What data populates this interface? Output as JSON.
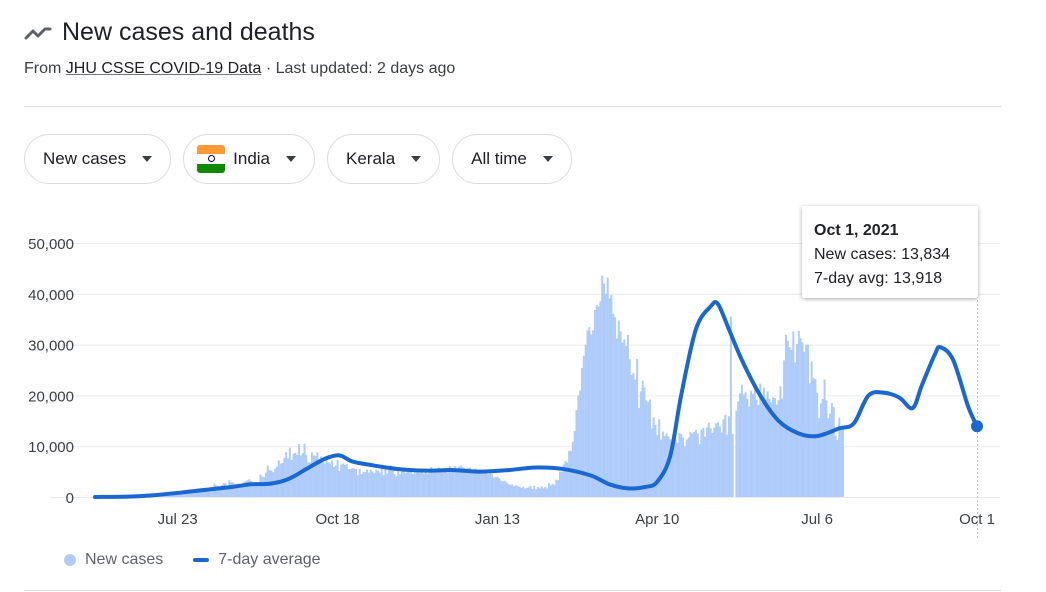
{
  "header": {
    "title": "New cases and deaths",
    "source_prefix": "From",
    "source_link": "JHU CSSE COVID-19 Data",
    "source_suffix": "· Last updated: 2 days ago"
  },
  "filters": {
    "metric": "New cases",
    "country": "India",
    "region": "Kerala",
    "range": "All time"
  },
  "tooltip": {
    "date": "Oct 1, 2021",
    "new_cases": "New cases: 13,834",
    "avg": "7-day avg: 13,918"
  },
  "legend": {
    "new_cases": "New cases",
    "avg": "7-day average"
  },
  "colors": {
    "bar": "#aecbfa",
    "avg_line": "#1967d2",
    "grid": "#e8eaed"
  },
  "chart_data": {
    "type": "bar",
    "x_ticks": [
      "Jul 23",
      "Oct 18",
      "Jan 13",
      "Apr 10",
      "Jul 6",
      "Oct 1"
    ],
    "x_tick_days": [
      120,
      207,
      294,
      381,
      468,
      555
    ],
    "x_range_days": [
      75,
      555
    ],
    "y_ticks": [
      "0",
      "10,000",
      "20,000",
      "30,000",
      "40,000",
      "50,000"
    ],
    "y_tick_values": [
      0,
      10000,
      20000,
      30000,
      40000,
      50000
    ],
    "ylim": [
      0,
      50000
    ],
    "grid": true,
    "legend_position": "bottom-left",
    "highlighted_day": 555,
    "highlighted_value": 13918,
    "series": [
      {
        "name": "7-day average",
        "type": "line",
        "points": [
          [
            75,
            0
          ],
          [
            95,
            100
          ],
          [
            105,
            300
          ],
          [
            120,
            800
          ],
          [
            135,
            1400
          ],
          [
            150,
            2000
          ],
          [
            160,
            2500
          ],
          [
            170,
            2600
          ],
          [
            180,
            3500
          ],
          [
            190,
            5500
          ],
          [
            200,
            7500
          ],
          [
            208,
            8200
          ],
          [
            215,
            7000
          ],
          [
            225,
            6300
          ],
          [
            240,
            5500
          ],
          [
            255,
            5200
          ],
          [
            270,
            5300
          ],
          [
            285,
            5000
          ],
          [
            300,
            5300
          ],
          [
            315,
            5800
          ],
          [
            330,
            5500
          ],
          [
            345,
            4200
          ],
          [
            355,
            2500
          ],
          [
            365,
            1700
          ],
          [
            375,
            2000
          ],
          [
            381,
            3000
          ],
          [
            388,
            8000
          ],
          [
            394,
            20000
          ],
          [
            402,
            33000
          ],
          [
            410,
            37500
          ],
          [
            414,
            38000
          ],
          [
            420,
            33000
          ],
          [
            427,
            27000
          ],
          [
            437,
            20000
          ],
          [
            447,
            15000
          ],
          [
            458,
            12500
          ],
          [
            468,
            12000
          ],
          [
            480,
            13500
          ],
          [
            488,
            14500
          ],
          [
            496,
            20000
          ],
          [
            505,
            20500
          ],
          [
            513,
            19500
          ],
          [
            520,
            17500
          ],
          [
            525,
            22000
          ],
          [
            532,
            28000
          ],
          [
            535,
            29500
          ],
          [
            542,
            27000
          ],
          [
            550,
            18000
          ],
          [
            555,
            13918
          ]
        ]
      },
      {
        "name": "New cases",
        "type": "bar",
        "x_start_day": 75,
        "values": [
          0,
          0,
          0,
          0,
          0,
          0,
          0,
          0,
          0,
          0,
          0,
          0,
          0,
          0,
          0,
          0,
          0,
          0,
          0,
          0,
          200,
          100,
          100,
          100,
          100,
          100,
          100,
          100,
          100,
          200,
          300,
          300,
          300,
          300,
          300,
          200,
          400,
          400,
          300,
          600,
          600,
          500,
          600,
          600,
          600,
          1000,
          700,
          800,
          800,
          800,
          1300,
          1500,
          1300,
          1300,
          1300,
          1300,
          1700,
          1700,
          1700,
          1200,
          1700,
          1800,
          1700,
          1300,
          1300,
          2600,
          2300,
          2200,
          1900,
          2400,
          2700,
          2700,
          2200,
          3300,
          2900,
          2900,
          2600,
          2600,
          2500,
          2500,
          2700,
          2900,
          3100,
          3300,
          3500,
          3200,
          2400,
          2500,
          2700,
          2100,
          4400,
          4000,
          3900,
          4800,
          6200,
          5300,
          5200,
          4900,
          5600,
          6000,
          7200,
          6600,
          6700,
          7700,
          8800,
          7600,
          9700,
          7300,
          8500,
          8700,
          8300,
          10400,
          8200,
          8600,
          10500,
          8200,
          6800,
          6800,
          8800,
          8200,
          8100,
          8800,
          7100,
          8000,
          6900,
          6600,
          7200,
          6800,
          6600,
          7200,
          5900,
          6200,
          7300,
          5100,
          6400,
          6600,
          6300,
          6500,
          5500,
          5500,
          5700,
          5600,
          5500,
          4300,
          5500,
          4500,
          4900,
          4900,
          5400,
          4800,
          5400,
          5000,
          4700,
          5400,
          5200,
          4800,
          5600,
          4300,
          5500,
          4600,
          5400,
          6200,
          5600,
          4500,
          4100,
          5500,
          4500,
          5200,
          5800,
          4700,
          5600,
          5500,
          5200,
          4500,
          4900,
          5400,
          5200,
          4800,
          5500,
          4600,
          5300,
          4600,
          5400,
          5900,
          4800,
          5100,
          5200,
          5800,
          5500,
          5300,
          5100,
          5500,
          4800,
          6100,
          5200,
          5300,
          6100,
          5200,
          6000,
          6200,
          5900,
          5700,
          5500,
          5700,
          5800,
          5200,
          5000,
          5600,
          5300,
          5400,
          5100,
          5200,
          4800,
          5400,
          4500,
          5300,
          4500,
          3800,
          3900,
          4000,
          3700,
          3200,
          3100,
          3200,
          2900,
          2500,
          2400,
          2500,
          2100,
          2300,
          2200,
          2000,
          1800,
          2000,
          1700,
          1800,
          1900,
          2200,
          1600,
          2200,
          1500,
          2000,
          1700,
          2100,
          1700,
          2000,
          1700,
          2700,
          2300,
          2600,
          2400,
          3400,
          3300,
          5000,
          5000,
          6400,
          7100,
          6800,
          9100,
          9100,
          10900,
          13000,
          17100,
          20000,
          21000,
          25400,
          27800,
          30000,
          32800,
          33500,
          32000,
          32800,
          36800,
          37800,
          37500,
          38500,
          43600,
          42000,
          40000,
          43200,
          39100,
          39800,
          36100,
          35400,
          31200,
          34700,
          32600,
          30400,
          31000,
          29700,
          31900,
          27100,
          24000,
          24400,
          23100,
          27200,
          17500,
          20800,
          22900,
          21600,
          19000,
          18700,
          19200,
          13500,
          15700,
          14200,
          12200,
          15300,
          11300,
          12900,
          12000,
          12500,
          11900,
          11400,
          10800,
          12600,
          11300,
          10700,
          12600,
          12400,
          11700,
          10000,
          11300,
          11700,
          12800,
          12500,
          12800,
          13200,
          12500,
          10400,
          13300,
          13600,
          11900,
          13700,
          14600,
          13500,
          12600,
          13700,
          14500,
          14700,
          13900,
          12700,
          15300,
          16200,
          12300,
          15900,
          35500,
          12400,
          0,
          17000,
          18800,
          20400,
          22100,
          20200,
          20600,
          19300,
          17800,
          20900,
          20300,
          21900,
          19200,
          18100,
          22300,
          18600,
          21500,
          19400,
          20800,
          19300,
          18700,
          19600,
          19500,
          18200,
          19100,
          21800,
          19400,
          26900,
          31900,
          30700,
          29500,
          29000,
          32600,
          26500,
          30100,
          32700,
          31300,
          30400,
          28600,
          30000,
          30000,
          22400,
          26700,
          23400,
          23200,
          20500,
          15500,
          18400,
          19300,
          23100,
          19000,
          15500,
          16400,
          18500,
          17700,
          12100,
          11200,
          15600,
          13800,
          13800
        ]
      }
    ]
  }
}
